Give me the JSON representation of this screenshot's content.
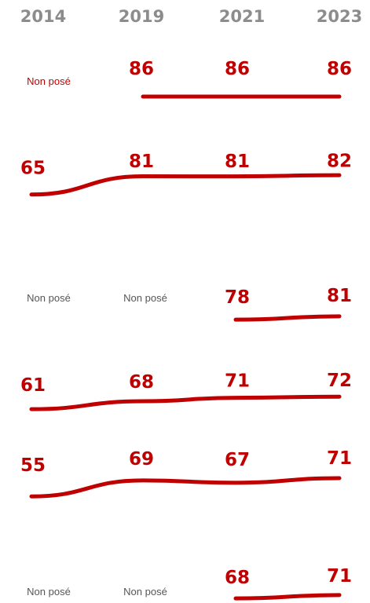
{
  "chart_data": {
    "type": "line",
    "x": [
      "2014",
      "2019",
      "2021",
      "2023"
    ],
    "missing_label": "Non posé",
    "colors": {
      "series": "#c00000",
      "axis_text": "#8c8c8c",
      "missing_text": "#c00000",
      "missing_text_muted": "#555555"
    },
    "series": [
      {
        "values": [
          null,
          86,
          86,
          86
        ],
        "missing_labels_colored": true
      },
      {
        "values": [
          65,
          81,
          81,
          82
        ]
      },
      {
        "values": [
          null,
          null,
          78,
          81
        ]
      },
      {
        "values": [
          61,
          68,
          71,
          72
        ]
      },
      {
        "values": [
          55,
          69,
          67,
          71
        ]
      },
      {
        "values": [
          null,
          null,
          68,
          71
        ]
      }
    ]
  }
}
